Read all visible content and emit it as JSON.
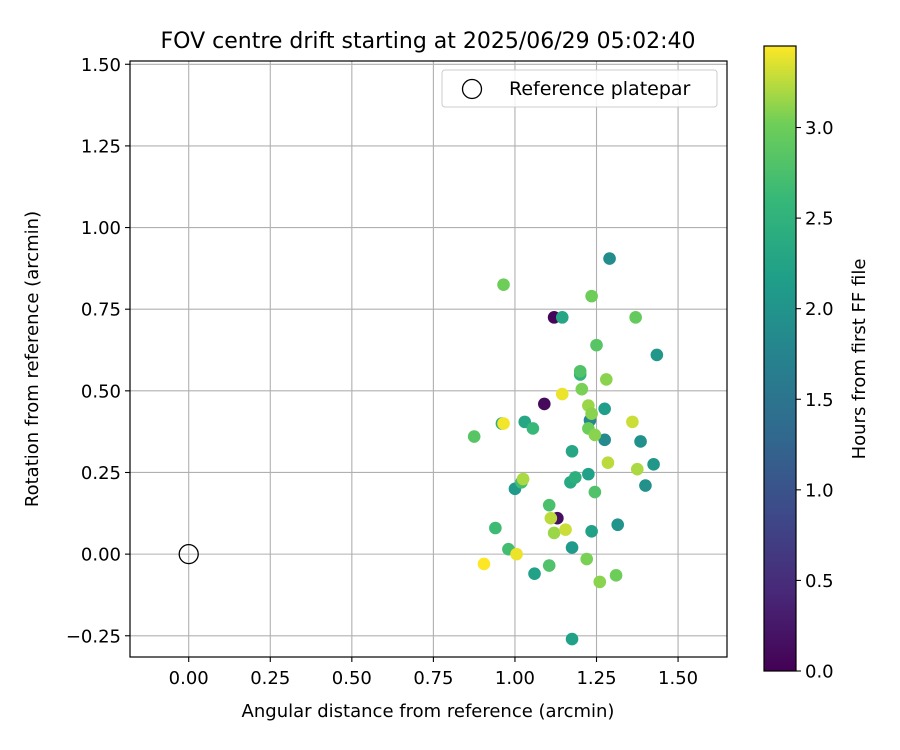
{
  "chart_data": {
    "type": "scatter",
    "title": "FOV centre drift starting at 2025/06/29 05:02:40",
    "xlabel": "Angular distance from reference (arcmin)",
    "ylabel": "Rotation from reference (arcmin)",
    "xlim": [
      -0.18,
      1.65
    ],
    "ylim": [
      -0.315,
      1.51
    ],
    "xticks": [
      0.0,
      0.25,
      0.5,
      0.75,
      1.0,
      1.25,
      1.5
    ],
    "xtick_labels": [
      "0.00",
      "0.25",
      "0.50",
      "0.75",
      "1.00",
      "1.25",
      "1.50"
    ],
    "yticks": [
      -0.25,
      0.0,
      0.25,
      0.5,
      0.75,
      1.0,
      1.25,
      1.5
    ],
    "ytick_labels": [
      "−0.25",
      "0.00",
      "0.25",
      "0.50",
      "0.75",
      "1.00",
      "1.25",
      "1.50"
    ],
    "grid": true,
    "legend": {
      "placement": "top-right",
      "entries": [
        "Reference platepar"
      ]
    },
    "colorbar": {
      "label": "Hours from first FF file",
      "colormap": "viridis",
      "range": [
        0.0,
        3.45
      ],
      "ticks": [
        0.0,
        0.5,
        1.0,
        1.5,
        2.0,
        2.5,
        3.0
      ],
      "tick_labels": [
        "0.0",
        "0.5",
        "1.0",
        "1.5",
        "2.0",
        "2.5",
        "3.0"
      ]
    },
    "reference_point": {
      "x": 0.0,
      "y": 0.0
    },
    "points": [
      {
        "x": 1.12,
        "y": 0.725,
        "h": 0.05
      },
      {
        "x": 1.09,
        "y": 0.46,
        "h": 0.1
      },
      {
        "x": 1.13,
        "y": 0.11,
        "h": 0.15
      },
      {
        "x": 1.29,
        "y": 0.905,
        "h": 1.9
      },
      {
        "x": 1.435,
        "y": 0.61,
        "h": 2.05
      },
      {
        "x": 1.275,
        "y": 0.445,
        "h": 2.15
      },
      {
        "x": 1.385,
        "y": 0.345,
        "h": 1.95
      },
      {
        "x": 1.425,
        "y": 0.275,
        "h": 2.05
      },
      {
        "x": 1.4,
        "y": 0.21,
        "h": 1.95
      },
      {
        "x": 1.275,
        "y": 0.35,
        "h": 1.85
      },
      {
        "x": 1.23,
        "y": 0.41,
        "h": 1.8
      },
      {
        "x": 1.315,
        "y": 0.09,
        "h": 2.0
      },
      {
        "x": 1.235,
        "y": 0.07,
        "h": 2.2
      },
      {
        "x": 1.175,
        "y": 0.02,
        "h": 2.1
      },
      {
        "x": 1.06,
        "y": -0.06,
        "h": 2.2
      },
      {
        "x": 1.175,
        "y": -0.26,
        "h": 2.2
      },
      {
        "x": 1.0,
        "y": 0.2,
        "h": 2.1
      },
      {
        "x": 1.03,
        "y": 0.405,
        "h": 2.3
      },
      {
        "x": 1.145,
        "y": 0.725,
        "h": 2.3
      },
      {
        "x": 1.175,
        "y": 0.315,
        "h": 2.3
      },
      {
        "x": 1.225,
        "y": 0.245,
        "h": 2.2
      },
      {
        "x": 1.17,
        "y": 0.22,
        "h": 2.35
      },
      {
        "x": 1.185,
        "y": 0.235,
        "h": 2.45
      },
      {
        "x": 1.2,
        "y": 0.55,
        "h": 2.5
      },
      {
        "x": 0.96,
        "y": 0.4,
        "h": 2.45
      },
      {
        "x": 1.02,
        "y": 0.22,
        "h": 2.7
      },
      {
        "x": 1.055,
        "y": 0.385,
        "h": 2.6
      },
      {
        "x": 0.94,
        "y": 0.08,
        "h": 2.65
      },
      {
        "x": 0.98,
        "y": 0.015,
        "h": 2.7
      },
      {
        "x": 1.105,
        "y": -0.035,
        "h": 2.8
      },
      {
        "x": 1.105,
        "y": 0.15,
        "h": 2.75
      },
      {
        "x": 1.245,
        "y": 0.19,
        "h": 2.8
      },
      {
        "x": 1.25,
        "y": 0.64,
        "h": 2.85
      },
      {
        "x": 1.2,
        "y": 0.56,
        "h": 2.8
      },
      {
        "x": 0.875,
        "y": 0.36,
        "h": 2.85
      },
      {
        "x": 0.965,
        "y": 0.825,
        "h": 3.0
      },
      {
        "x": 1.235,
        "y": 0.79,
        "h": 3.0
      },
      {
        "x": 1.37,
        "y": 0.725,
        "h": 2.95
      },
      {
        "x": 1.205,
        "y": 0.505,
        "h": 3.05
      },
      {
        "x": 1.28,
        "y": 0.535,
        "h": 3.1
      },
      {
        "x": 1.225,
        "y": 0.455,
        "h": 3.15
      },
      {
        "x": 1.235,
        "y": 0.43,
        "h": 3.1
      },
      {
        "x": 1.225,
        "y": 0.385,
        "h": 3.0
      },
      {
        "x": 1.245,
        "y": 0.365,
        "h": 3.1
      },
      {
        "x": 1.31,
        "y": -0.065,
        "h": 3.0
      },
      {
        "x": 1.26,
        "y": -0.085,
        "h": 3.1
      },
      {
        "x": 1.22,
        "y": -0.015,
        "h": 3.05
      },
      {
        "x": 1.12,
        "y": 0.065,
        "h": 3.15
      },
      {
        "x": 1.025,
        "y": 0.23,
        "h": 3.2
      },
      {
        "x": 1.11,
        "y": 0.11,
        "h": 3.25
      },
      {
        "x": 1.155,
        "y": 0.075,
        "h": 3.3
      },
      {
        "x": 1.285,
        "y": 0.28,
        "h": 3.25
      },
      {
        "x": 1.375,
        "y": 0.26,
        "h": 3.2
      },
      {
        "x": 1.36,
        "y": 0.405,
        "h": 3.3
      },
      {
        "x": 1.145,
        "y": 0.49,
        "h": 3.4
      },
      {
        "x": 0.965,
        "y": 0.4,
        "h": 3.42
      },
      {
        "x": 1.005,
        "y": 0.0,
        "h": 3.4
      },
      {
        "x": 0.905,
        "y": -0.03,
        "h": 3.45
      }
    ]
  }
}
